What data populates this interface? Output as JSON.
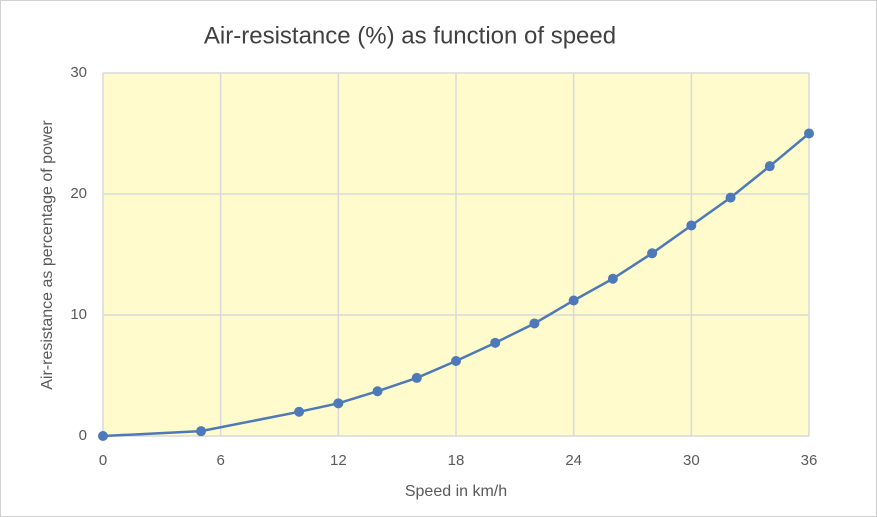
{
  "chart_data": {
    "type": "line",
    "title": "Air-resistance (%) as function of speed",
    "x_label": "Speed in km/h",
    "y_label": "Air-resistance as percentage of power",
    "x": [
      0,
      5,
      10,
      12,
      14,
      16,
      18,
      20,
      22,
      24,
      26,
      28,
      30,
      32,
      34,
      36
    ],
    "values": [
      0,
      0.4,
      2.0,
      2.7,
      3.7,
      4.8,
      6.2,
      7.7,
      9.3,
      11.2,
      13.0,
      15.1,
      17.4,
      19.7,
      22.3,
      25.0
    ],
    "color": "#4e79b8",
    "xlim": [
      0,
      36
    ],
    "xticks": [
      0,
      6,
      12,
      18,
      24,
      30,
      36
    ],
    "ylim": [
      0,
      30
    ],
    "yticks": [
      0,
      10,
      20,
      30
    ],
    "grid": true
  }
}
